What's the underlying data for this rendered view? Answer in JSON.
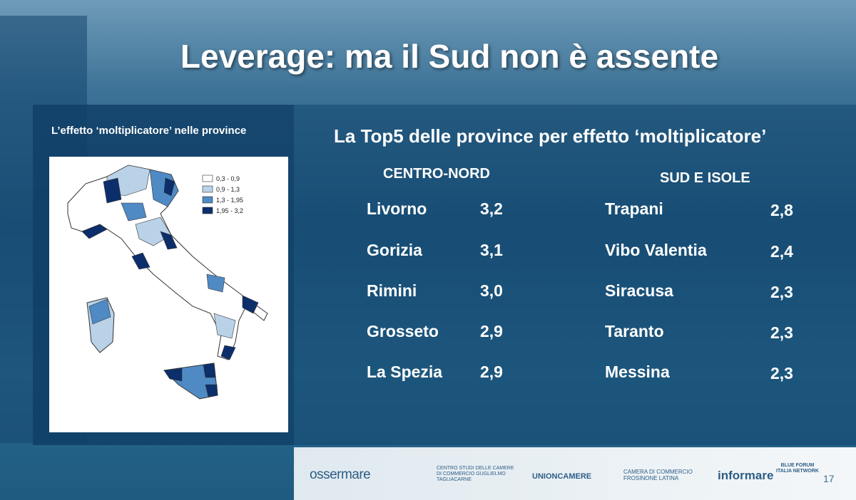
{
  "header": {
    "title": "Leverage: ma il Sud non è assente"
  },
  "map_panel": {
    "caption": "L’effetto ‘moltiplicatore’ nelle province",
    "legend": [
      {
        "label": "0,3 - 0,9",
        "color": "#ffffff"
      },
      {
        "label": "0,9 - 1,3",
        "color": "#b9d2e8"
      },
      {
        "label": "1,3 - 1,95",
        "color": "#4f8ac4"
      },
      {
        "label": "1,95 - 3,2",
        "color": "#0c2f6b"
      }
    ]
  },
  "ranking": {
    "title": "La Top5 delle province per effetto ‘moltiplicatore’",
    "columns": [
      {
        "header": "CENTRO-NORD",
        "rows": [
          {
            "province": "Livorno",
            "value": "3,2"
          },
          {
            "province": "Gorizia",
            "value": "3,1"
          },
          {
            "province": "Rimini",
            "value": "3,0"
          },
          {
            "province": "Grosseto",
            "value": "2,9"
          },
          {
            "province": "La Spezia",
            "value": "2,9"
          }
        ]
      },
      {
        "header": "SUD E ISOLE",
        "rows": [
          {
            "province": "Trapani",
            "value": "2,8"
          },
          {
            "province": "Vibo Valentia",
            "value": "2,4"
          },
          {
            "province": "Siracusa",
            "value": "2,3"
          },
          {
            "province": "Taranto",
            "value": "2,3"
          },
          {
            "province": "Messina",
            "value": "2,3"
          }
        ]
      }
    ]
  },
  "footer": {
    "logos": [
      "ossermare",
      "CENTRO STUDI DELLE CAMERE DI COMMERCIO GUGLIELMO TAGLIACARNE",
      "UNIONCAMERE",
      "CAMERA DI COMMERCIO FROSINONE LATINA",
      "informare",
      "BLUE FORUM ITALIA NETWORK"
    ],
    "page": "17"
  }
}
